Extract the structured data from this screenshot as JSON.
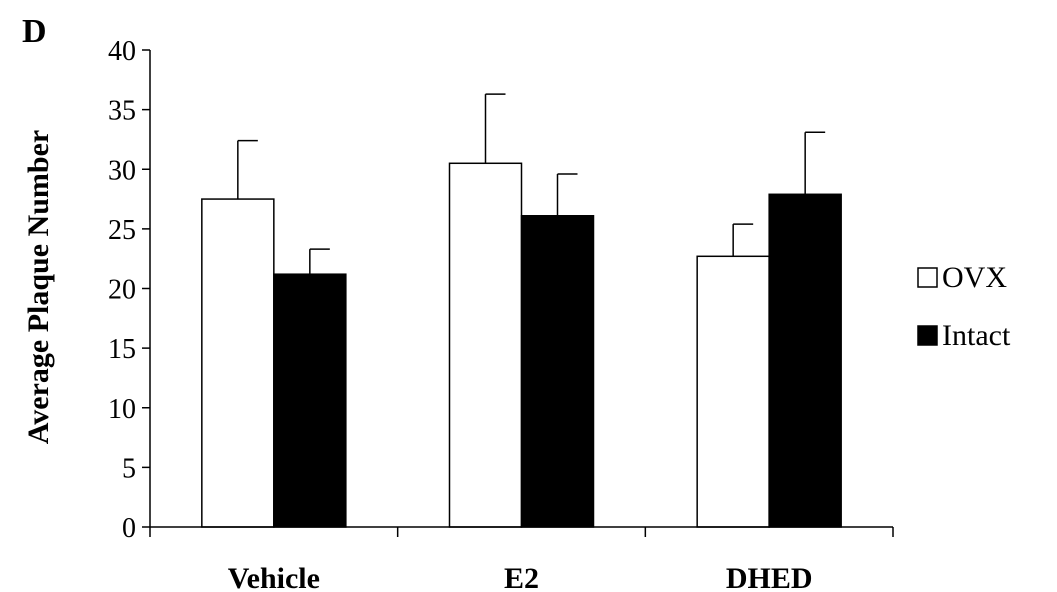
{
  "panel_label": "D",
  "chart_data": {
    "type": "bar",
    "title": "",
    "xlabel": "",
    "ylabel": "Average Plaque Number",
    "ylim": [
      0,
      40
    ],
    "yticks": [
      0,
      5,
      10,
      15,
      20,
      25,
      30,
      35,
      40
    ],
    "categories": [
      "Vehicle",
      "E2",
      "DHED"
    ],
    "series": [
      {
        "name": "OVX",
        "color": "#ffffff",
        "values": [
          27.5,
          30.5,
          22.7
        ],
        "errors": [
          4.9,
          5.8,
          2.7
        ]
      },
      {
        "name": "Intact",
        "color": "#000000",
        "values": [
          21.2,
          26.1,
          27.9
        ],
        "errors": [
          2.1,
          3.5,
          5.2
        ]
      }
    ],
    "legend_position": "right",
    "grid": false
  }
}
